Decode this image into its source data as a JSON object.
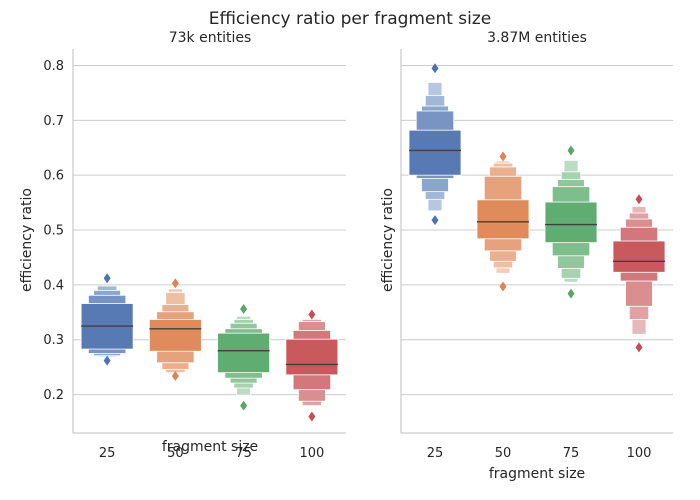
{
  "figure": {
    "suptitle": "Efficiency ratio per fragment size"
  },
  "chart_data": [
    {
      "type": "boxen",
      "title": "73k entities",
      "xlabel": "fragment size",
      "ylabel": "efficiency ratio",
      "categories": [
        "25",
        "50",
        "75",
        "100"
      ],
      "colors": [
        "#4c72b0",
        "#dd8452",
        "#55a868",
        "#c44e52"
      ],
      "ylim": [
        0.13,
        0.83
      ],
      "yticks": [
        0.2,
        0.3,
        0.4,
        0.5,
        0.6,
        0.7,
        0.8
      ],
      "ytick_labels": [
        "0.2",
        "0.3",
        "0.4",
        "0.5",
        "0.6",
        "0.7",
        "0.8"
      ],
      "grid": "y",
      "boxes": [
        {
          "median": 0.325,
          "levels": [
            [
              0.283,
              0.366
            ],
            [
              0.275,
              0.381
            ],
            [
              0.271,
              0.39
            ],
            [
              0.269,
              0.398
            ]
          ],
          "outliers_low": [
            0.262
          ],
          "outliers_high": [
            0.412
          ]
        },
        {
          "median": 0.32,
          "levels": [
            [
              0.279,
              0.337
            ],
            [
              0.258,
              0.351
            ],
            [
              0.246,
              0.364
            ],
            [
              0.24,
              0.386
            ],
            [
              0.238,
              0.393
            ]
          ],
          "outliers_low": [
            0.234
          ],
          "outliers_high": [
            0.403
          ]
        },
        {
          "median": 0.28,
          "levels": [
            [
              0.24,
              0.312
            ],
            [
              0.23,
              0.32
            ],
            [
              0.221,
              0.33
            ],
            [
              0.212,
              0.337
            ],
            [
              0.199,
              0.343
            ]
          ],
          "outliers_low": [
            0.18
          ],
          "outliers_high": [
            0.356
          ]
        },
        {
          "median": 0.255,
          "levels": [
            [
              0.236,
              0.301
            ],
            [
              0.209,
              0.317
            ],
            [
              0.188,
              0.333
            ],
            [
              0.18,
              0.337
            ]
          ],
          "outliers_low": [
            0.16
          ],
          "outliers_high": [
            0.346
          ]
        }
      ]
    },
    {
      "type": "boxen",
      "title": "3.87M entities",
      "xlabel": "fragment size",
      "ylabel": "efficiency ratio",
      "categories": [
        "25",
        "50",
        "75",
        "100"
      ],
      "colors": [
        "#4c72b0",
        "#dd8452",
        "#55a868",
        "#c44e52"
      ],
      "ylim": [
        0.13,
        0.83
      ],
      "yticks": [
        0.2,
        0.3,
        0.4,
        0.5,
        0.6,
        0.7,
        0.8
      ],
      "ytick_labels": [
        "",
        "",
        "",
        "",
        "",
        "",
        ""
      ],
      "grid": "y",
      "boxes": [
        {
          "median": 0.645,
          "levels": [
            [
              0.6,
              0.682
            ],
            [
              0.594,
              0.717
            ],
            [
              0.57,
              0.726
            ],
            [
              0.556,
              0.745
            ],
            [
              0.535,
              0.769
            ]
          ],
          "outliers_low": [
            0.518
          ],
          "outliers_high": [
            0.795
          ]
        },
        {
          "median": 0.515,
          "levels": [
            [
              0.484,
              0.555
            ],
            [
              0.462,
              0.598
            ],
            [
              0.443,
              0.615
            ],
            [
              0.431,
              0.622
            ],
            [
              0.421,
              0.626
            ]
          ],
          "outliers_low": [
            0.397
          ],
          "outliers_high": [
            0.634
          ]
        },
        {
          "median": 0.51,
          "levels": [
            [
              0.477,
              0.551
            ],
            [
              0.453,
              0.579
            ],
            [
              0.43,
              0.592
            ],
            [
              0.412,
              0.606
            ],
            [
              0.405,
              0.627
            ]
          ],
          "outliers_low": [
            0.384
          ],
          "outliers_high": [
            0.645
          ]
        },
        {
          "median": 0.443,
          "levels": [
            [
              0.423,
              0.48
            ],
            [
              0.407,
              0.505
            ],
            [
              0.361,
              0.52
            ],
            [
              0.337,
              0.531
            ],
            [
              0.31,
              0.543
            ]
          ],
          "outliers_low": [
            0.286
          ],
          "outliers_high": [
            0.556
          ]
        }
      ]
    }
  ]
}
